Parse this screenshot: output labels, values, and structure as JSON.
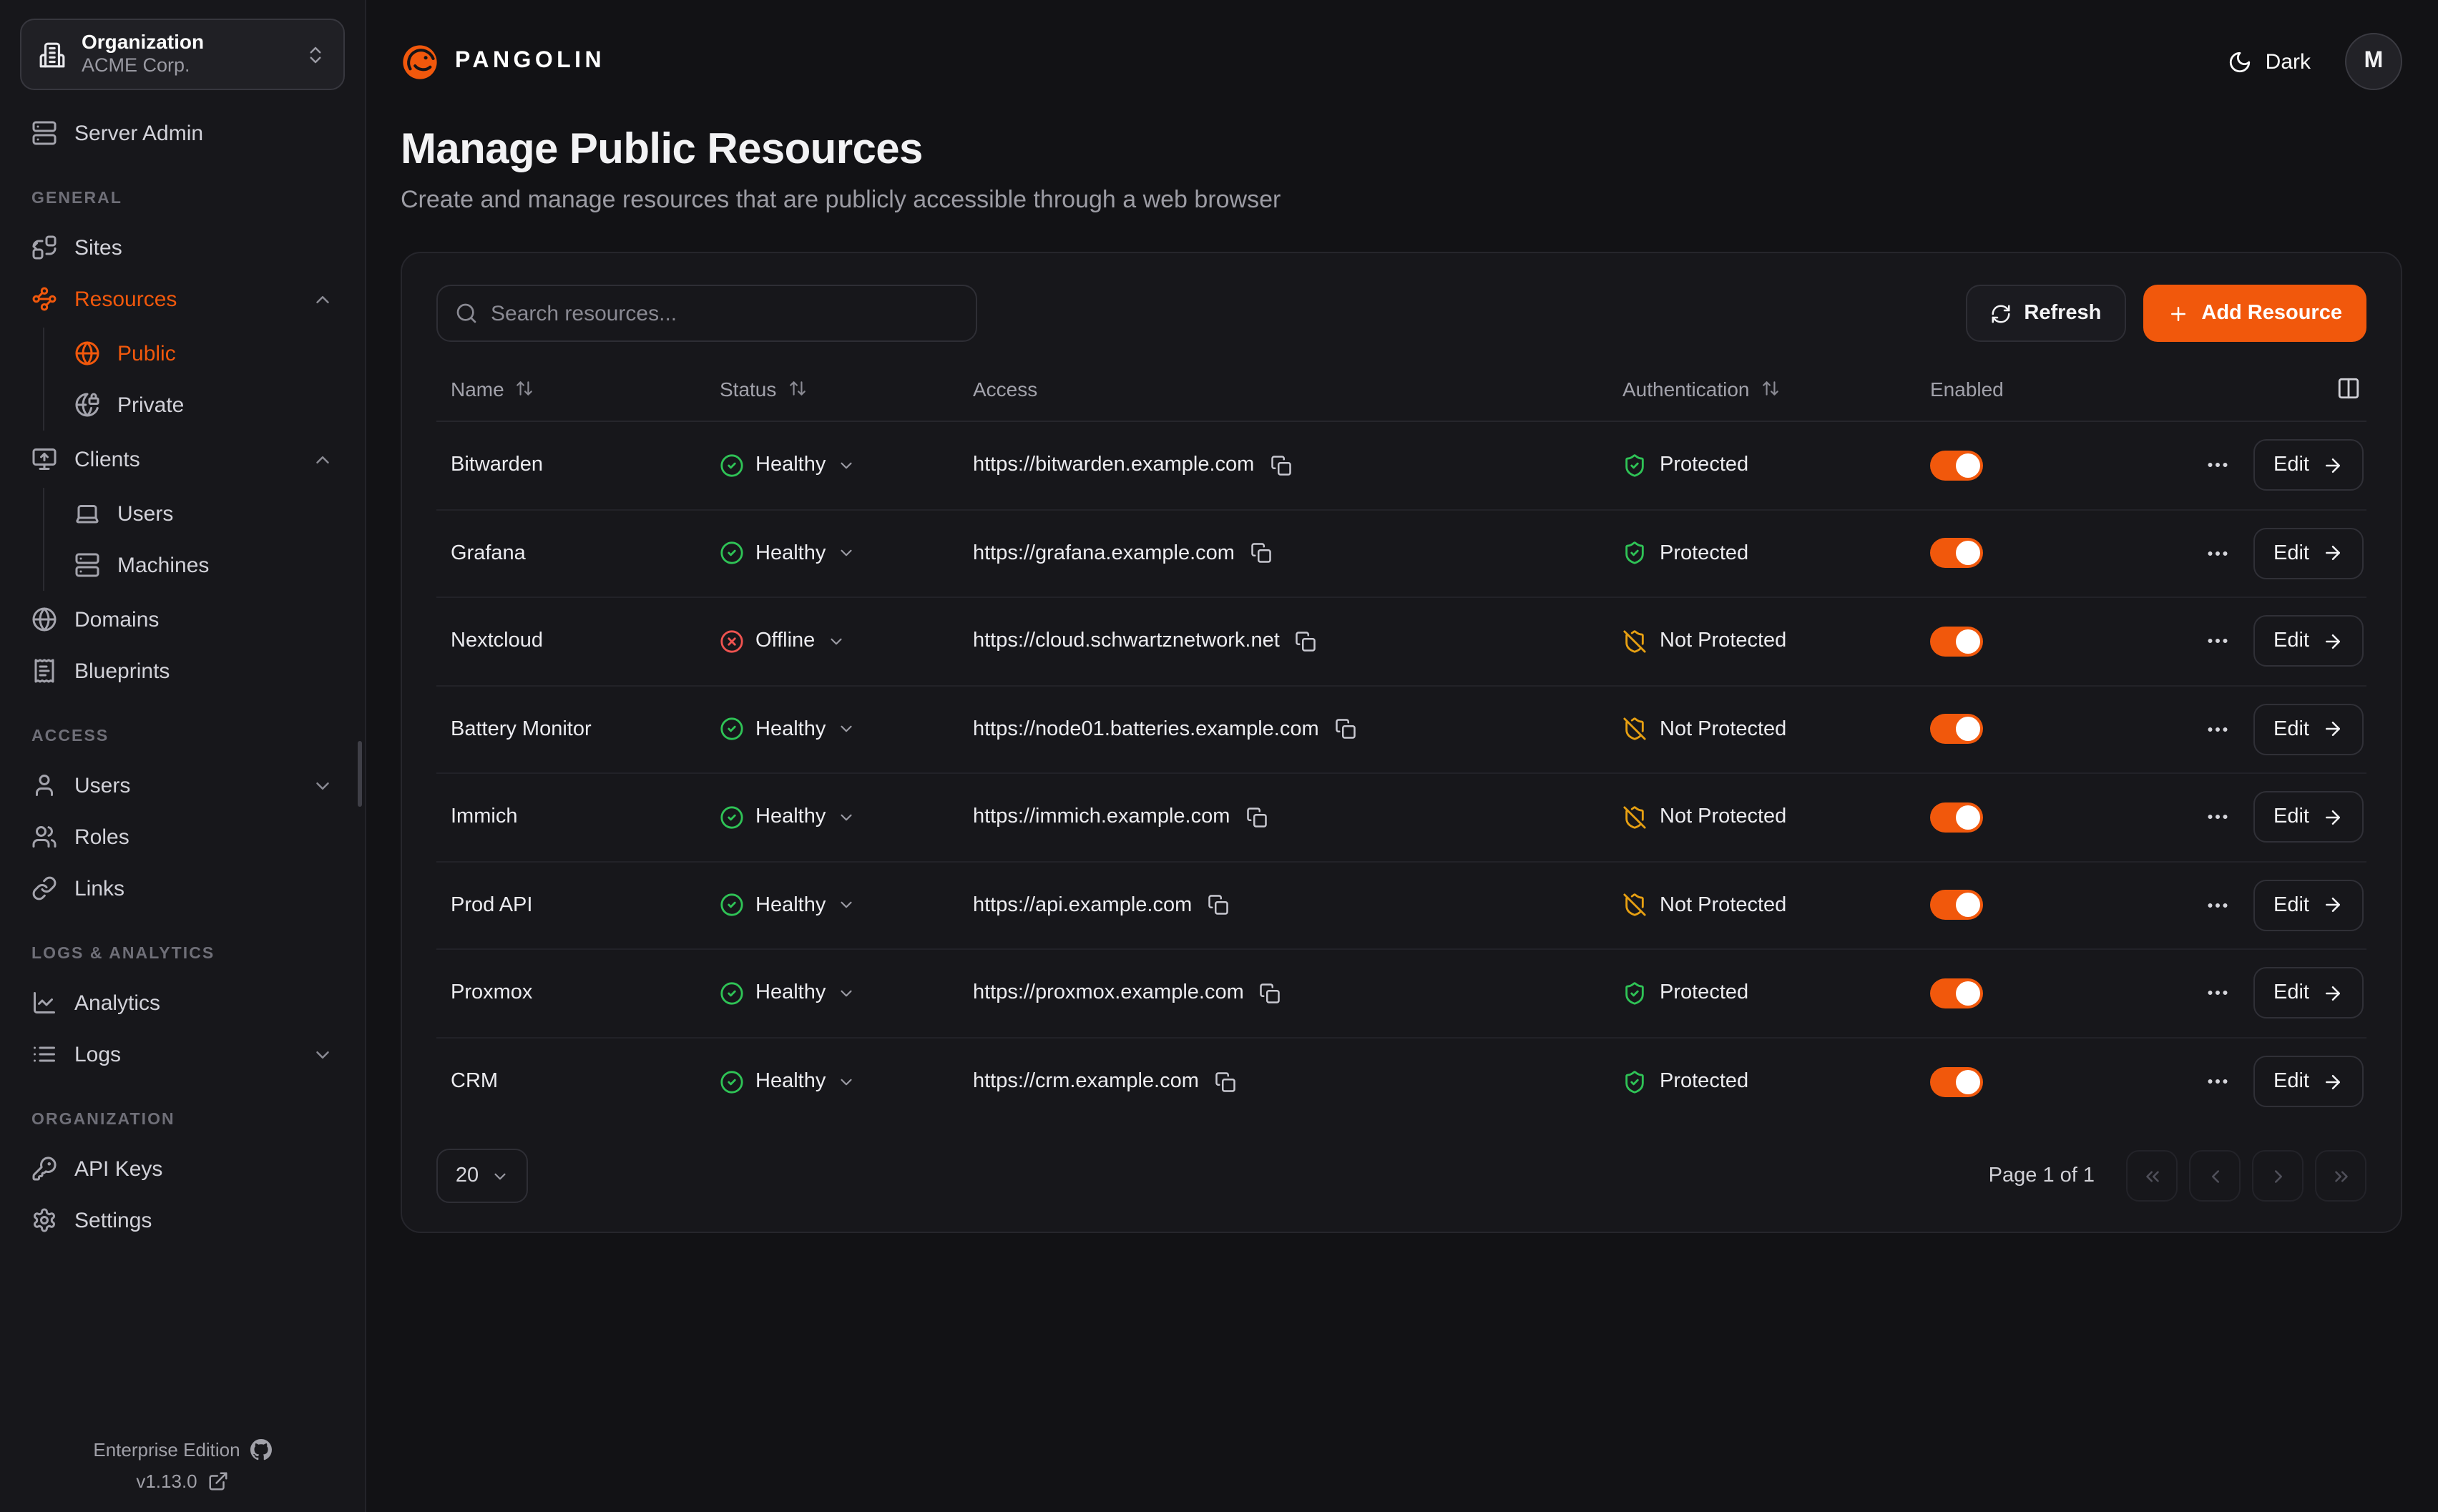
{
  "org_selector": {
    "label": "Organization",
    "value": "ACME Corp."
  },
  "brand": {
    "name": "PANGOLIN"
  },
  "header": {
    "theme_label": "Dark",
    "avatar_initial": "M"
  },
  "page": {
    "title": "Manage Public Resources",
    "subtitle": "Create and manage resources that are publicly accessible through a web browser"
  },
  "sidebar": {
    "top_item": {
      "label": "Server Admin",
      "icon": "server"
    },
    "sections": [
      {
        "heading": "GENERAL",
        "items": [
          {
            "label": "Sites",
            "icon": "combine"
          },
          {
            "label": "Resources",
            "icon": "waypoints",
            "active": true,
            "chevron": "up",
            "children": [
              {
                "label": "Public",
                "icon": "globe",
                "active": true
              },
              {
                "label": "Private",
                "icon": "globe-lock"
              }
            ]
          },
          {
            "label": "Clients",
            "icon": "monitor-up",
            "chevron": "up",
            "children": [
              {
                "label": "Users",
                "icon": "laptop"
              },
              {
                "label": "Machines",
                "icon": "server"
              }
            ]
          },
          {
            "label": "Domains",
            "icon": "globe"
          },
          {
            "label": "Blueprints",
            "icon": "receipt"
          }
        ]
      },
      {
        "heading": "ACCESS",
        "items": [
          {
            "label": "Users",
            "icon": "user",
            "chevron": "down"
          },
          {
            "label": "Roles",
            "icon": "users"
          },
          {
            "label": "Links",
            "icon": "link"
          }
        ]
      },
      {
        "heading": "LOGS & ANALYTICS",
        "items": [
          {
            "label": "Analytics",
            "icon": "chart"
          },
          {
            "label": "Logs",
            "icon": "list",
            "chevron": "down"
          }
        ]
      },
      {
        "heading": "ORGANIZATION",
        "items": [
          {
            "label": "API Keys",
            "icon": "key"
          },
          {
            "label": "Settings",
            "icon": "settings"
          }
        ]
      }
    ],
    "footer": {
      "edition": "Enterprise Edition",
      "version": "v1.13.0"
    }
  },
  "toolbar": {
    "search_placeholder": "Search resources...",
    "refresh_label": "Refresh",
    "add_label": "Add Resource"
  },
  "table": {
    "columns": [
      {
        "label": "Name",
        "sortable": true
      },
      {
        "label": "Status",
        "sortable": true
      },
      {
        "label": "Access",
        "sortable": false
      },
      {
        "label": "Authentication",
        "sortable": true
      },
      {
        "label": "Enabled",
        "sortable": false
      }
    ],
    "edit_label": "Edit",
    "rows": [
      {
        "name": "Bitwarden",
        "status": "Healthy",
        "status_state": "healthy",
        "url": "https://bitwarden.example.com",
        "auth": "Protected",
        "auth_state": "protected",
        "enabled": true
      },
      {
        "name": "Grafana",
        "status": "Healthy",
        "status_state": "healthy",
        "url": "https://grafana.example.com",
        "auth": "Protected",
        "auth_state": "protected",
        "enabled": true
      },
      {
        "name": "Nextcloud",
        "status": "Offline",
        "status_state": "offline",
        "url": "https://cloud.schwartznetwork.net",
        "auth": "Not Protected",
        "auth_state": "not_protected",
        "enabled": true
      },
      {
        "name": "Battery Monitor",
        "status": "Healthy",
        "status_state": "healthy",
        "url": "https://node01.batteries.example.com",
        "auth": "Not Protected",
        "auth_state": "not_protected",
        "enabled": true
      },
      {
        "name": "Immich",
        "status": "Healthy",
        "status_state": "healthy",
        "url": "https://immich.example.com",
        "auth": "Not Protected",
        "auth_state": "not_protected",
        "enabled": true
      },
      {
        "name": "Prod API",
        "status": "Healthy",
        "status_state": "healthy",
        "url": "https://api.example.com",
        "auth": "Not Protected",
        "auth_state": "not_protected",
        "enabled": true
      },
      {
        "name": "Proxmox",
        "status": "Healthy",
        "status_state": "healthy",
        "url": "https://proxmox.example.com",
        "auth": "Protected",
        "auth_state": "protected",
        "enabled": true
      },
      {
        "name": "CRM",
        "status": "Healthy",
        "status_state": "healthy",
        "url": "https://crm.example.com",
        "auth": "Protected",
        "auth_state": "protected",
        "enabled": true
      }
    ]
  },
  "pagination": {
    "page_size": "20",
    "page_info": "Page 1 of 1"
  },
  "colors": {
    "accent": "#f1580c",
    "healthy": "#2fc356",
    "offline": "#ef5350",
    "protected": "#2fc356",
    "not_protected": "#e7a012"
  }
}
